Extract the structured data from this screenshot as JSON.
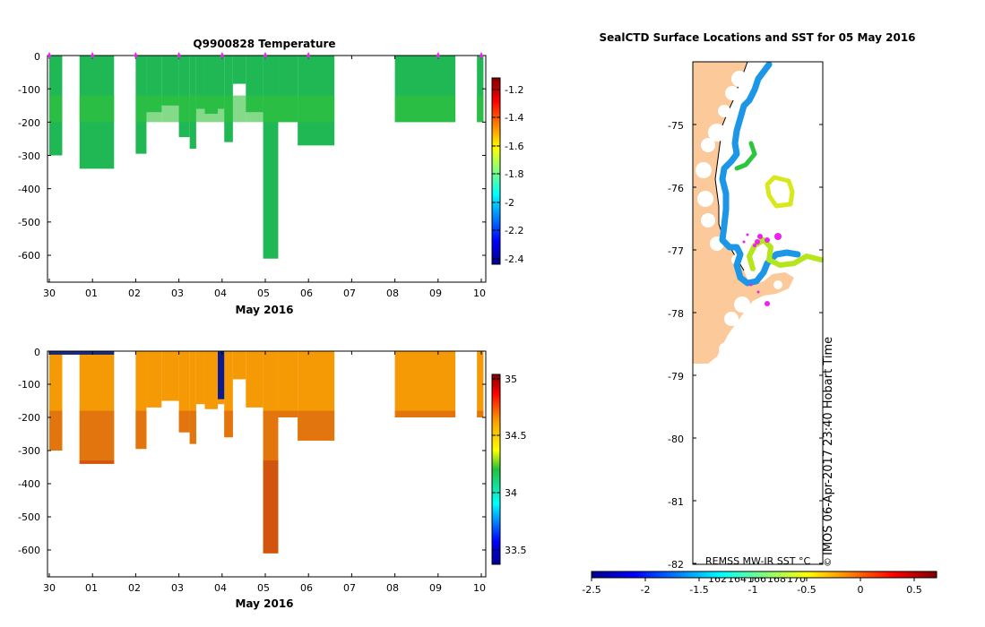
{
  "chart_data": [
    {
      "type": "heatmap",
      "title": "Q9900828  Temperature",
      "xlabel": "May 2016",
      "x_ticks": [
        "30",
        "01",
        "02",
        "03",
        "04",
        "05",
        "06",
        "07",
        "08",
        "09",
        "10"
      ],
      "y_ticks": [
        "0",
        "-100",
        "-200",
        "-300",
        "-400",
        "-500",
        "-600"
      ],
      "ylim": [
        -680,
        0
      ],
      "colorbar": {
        "ticks": [
          "-1.2",
          "-1.4",
          "-1.6",
          "-1.8",
          "-2",
          "-2.2",
          "-2.4"
        ],
        "range": [
          -2.5,
          -1.1
        ]
      },
      "profile_columns_day_start_end_depth": [
        [
          0.0,
          0.3,
          -300
        ],
        [
          0.7,
          1.5,
          -340
        ],
        [
          2.0,
          2.25,
          -295
        ],
        [
          2.25,
          2.6,
          -170
        ],
        [
          2.6,
          3.0,
          -150
        ],
        [
          3.0,
          3.25,
          -245
        ],
        [
          3.25,
          3.4,
          -280
        ],
        [
          3.4,
          3.6,
          -160
        ],
        [
          3.6,
          3.9,
          -175
        ],
        [
          3.9,
          4.05,
          -160
        ],
        [
          4.05,
          4.25,
          -260
        ],
        [
          4.25,
          4.55,
          -85
        ],
        [
          4.55,
          4.95,
          -170
        ],
        [
          4.95,
          5.3,
          -610
        ],
        [
          5.3,
          5.75,
          -200
        ],
        [
          5.75,
          6.6,
          -270
        ],
        [
          8.0,
          9.4,
          -200
        ],
        [
          9.9,
          10.05,
          -200
        ]
      ],
      "profile_markers_day": [
        0.0,
        1.0,
        2.0,
        3.0,
        4.0,
        5.0,
        6.0,
        9.0,
        10.0
      ]
    },
    {
      "type": "heatmap",
      "title": "",
      "xlabel": "May 2016",
      "x_ticks": [
        "30",
        "01",
        "02",
        "03",
        "04",
        "05",
        "06",
        "07",
        "08",
        "09",
        "10"
      ],
      "y_ticks": [
        "0",
        "-100",
        "-200",
        "-300",
        "-400",
        "-500",
        "-600"
      ],
      "ylim": [
        -680,
        0
      ],
      "colorbar": {
        "ticks": [
          "35",
          "34.5",
          "34",
          "33.5"
        ],
        "range": [
          33.3,
          35.05
        ]
      }
    },
    {
      "type": "heatmap",
      "title": "SealCTD Surface Locations and SST for 05 May 2016",
      "y_ticks": [
        "-75",
        "-76",
        "-77",
        "-78",
        "-79",
        "-80",
        "-81",
        "-82"
      ],
      "ylim": [
        -82,
        -74
      ],
      "x_ticks_inside": [
        "162",
        "164",
        "166",
        "168",
        "170"
      ],
      "colorbar": {
        "ticks": [
          "-2.5",
          "-2",
          "-1.5",
          "-1",
          "-0.5",
          "0",
          "0.5"
        ],
        "range": [
          -2.5,
          0.7
        ],
        "label": "REMSS MW-IR SST °C"
      },
      "watermark": "IMOS 06-Apr-2017 23:40 Hobart Time",
      "copyright_symbol": "©"
    }
  ]
}
